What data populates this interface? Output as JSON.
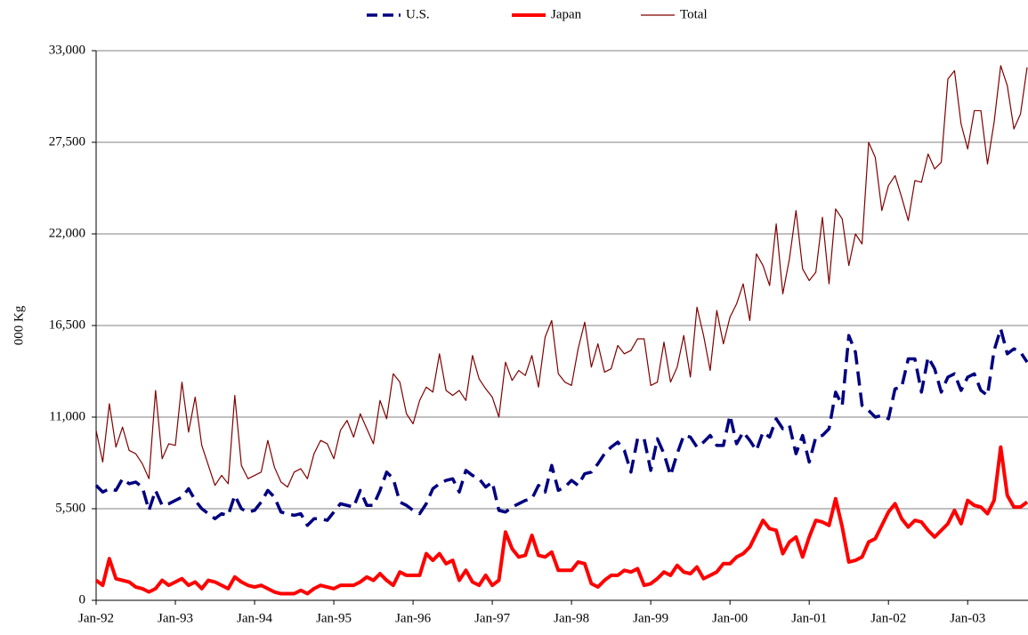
{
  "chart_data": {
    "type": "line",
    "y_label": "000 Kg",
    "categories": [
      "Jan-92",
      null,
      null,
      null,
      null,
      null,
      null,
      null,
      null,
      null,
      null,
      null,
      "Jan-93",
      null,
      null,
      null,
      null,
      null,
      null,
      null,
      null,
      null,
      null,
      null,
      "Jan-94",
      null,
      null,
      null,
      null,
      null,
      null,
      null,
      null,
      null,
      null,
      null,
      "Jan-95",
      null,
      null,
      null,
      null,
      null,
      null,
      null,
      null,
      null,
      null,
      null,
      "Jan-96",
      null,
      null,
      null,
      null,
      null,
      null,
      null,
      null,
      null,
      null,
      null,
      "Jan-97",
      null,
      null,
      null,
      null,
      null,
      null,
      null,
      null,
      null,
      null,
      null,
      "Jan-98",
      null,
      null,
      null,
      null,
      null,
      null,
      null,
      null,
      null,
      null,
      null,
      "Jan-99",
      null,
      null,
      null,
      null,
      null,
      null,
      null,
      null,
      null,
      null,
      null,
      "Jan-00",
      null,
      null,
      null,
      null,
      null,
      null,
      null,
      null,
      null,
      null,
      null,
      "Jan-01",
      null,
      null,
      null,
      null,
      null,
      null,
      null,
      null,
      null,
      null,
      null,
      "Jan-02",
      null,
      null,
      null,
      null,
      null,
      null,
      null,
      null,
      null,
      null,
      null,
      "Jan-03",
      null,
      null,
      null,
      null,
      null,
      null,
      null,
      null,
      null
    ],
    "series": [
      {
        "name": "U.S.",
        "color": "#000080",
        "dashed": true,
        "values": [
          6900,
          6500,
          6700,
          6600,
          7300,
          7000,
          7100,
          6800,
          5400,
          6600,
          5700,
          5800,
          6000,
          6200,
          6700,
          6000,
          5500,
          5200,
          4900,
          5200,
          5100,
          6300,
          5500,
          5300,
          5400,
          5900,
          6600,
          6200,
          5300,
          5200,
          5100,
          5200,
          4500,
          4900,
          4900,
          4800,
          5300,
          5800,
          5700,
          5600,
          6600,
          5700,
          5700,
          6600,
          7700,
          7300,
          5900,
          5700,
          5400,
          5200,
          5800,
          6700,
          7000,
          7200,
          7300,
          6500,
          7800,
          7500,
          7300,
          6800,
          7100,
          5400,
          5300,
          5600,
          5800,
          6000,
          6100,
          6900,
          6500,
          8100,
          6600,
          6800,
          7200,
          6900,
          7600,
          7700,
          8200,
          8800,
          9200,
          9500,
          9000,
          7700,
          9700,
          9700,
          7800,
          9700,
          8800,
          7500,
          8800,
          9900,
          9800,
          9200,
          9500,
          9900,
          9300,
          9300,
          11100,
          9400,
          10100,
          9600,
          9000,
          10100,
          9800,
          10900,
          10300,
          10500,
          8800,
          9900,
          8300,
          9800,
          9900,
          10300,
          12500,
          11700,
          15900,
          14900,
          11700,
          11400,
          11000,
          11100,
          10900,
          12700,
          12800,
          14500,
          14500,
          12500,
          14600,
          13900,
          12500,
          13400,
          13600,
          12600,
          13400,
          13600,
          12600,
          12300,
          15000,
          16300,
          14800,
          15100,
          14900,
          14300
        ]
      },
      {
        "name": "Japan",
        "color": "#ff0000",
        "width": 4,
        "values": [
          1200,
          900,
          2500,
          1300,
          1200,
          1100,
          800,
          700,
          500,
          700,
          1200,
          900,
          1100,
          1300,
          900,
          1100,
          700,
          1200,
          1100,
          900,
          700,
          1400,
          1100,
          900,
          800,
          900,
          700,
          500,
          400,
          400,
          400,
          600,
          400,
          700,
          900,
          800,
          700,
          900,
          900,
          900,
          1100,
          1400,
          1200,
          1600,
          1200,
          900,
          1700,
          1500,
          1500,
          1500,
          2800,
          2400,
          2800,
          2200,
          2400,
          1200,
          1800,
          1100,
          900,
          1500,
          900,
          1200,
          4100,
          3100,
          2600,
          2700,
          3900,
          2700,
          2600,
          2900,
          1800,
          1800,
          1800,
          2300,
          2200,
          1000,
          800,
          1200,
          1500,
          1500,
          1800,
          1700,
          1900,
          900,
          1000,
          1300,
          1700,
          1500,
          2100,
          1700,
          1600,
          2000,
          1300,
          1500,
          1700,
          2200,
          2200,
          2600,
          2800,
          3200,
          4000,
          4800,
          4300,
          4200,
          2800,
          3500,
          3800,
          2600,
          3800,
          4800,
          4700,
          4500,
          6100,
          4400,
          2300,
          2400,
          2600,
          3500,
          3700,
          4500,
          5300,
          5800,
          4900,
          4400,
          4800,
          4700,
          4200,
          3800,
          4200,
          4600,
          5400,
          4600,
          6000,
          5700,
          5600,
          5200,
          6000,
          9200,
          6300,
          5600,
          5600,
          5900
        ]
      },
      {
        "name": "Total",
        "color": "#800000",
        "width": 1.2,
        "values": [
          10200,
          8300,
          11800,
          9200,
          10400,
          9000,
          8800,
          8200,
          7300,
          12600,
          8500,
          9400,
          9300,
          13100,
          10100,
          12200,
          9300,
          8100,
          6900,
          7500,
          7000,
          12300,
          8100,
          7300,
          7500,
          7700,
          9600,
          8000,
          7100,
          6800,
          7700,
          7900,
          7300,
          8800,
          9600,
          9400,
          8500,
          10200,
          10800,
          9800,
          11200,
          10300,
          9400,
          12000,
          10900,
          13600,
          13100,
          11200,
          10600,
          12000,
          12800,
          12500,
          14800,
          12600,
          12300,
          12600,
          12000,
          14700,
          13300,
          12700,
          12200,
          11000,
          14300,
          13200,
          13800,
          13500,
          14700,
          12800,
          15800,
          16800,
          13600,
          13100,
          12900,
          15100,
          16700,
          14000,
          15400,
          13700,
          13900,
          15300,
          14800,
          15000,
          15700,
          15700,
          12900,
          13100,
          15500,
          13100,
          14000,
          15900,
          13400,
          17600,
          15900,
          13800,
          17400,
          15400,
          17000,
          17800,
          19000,
          16800,
          20800,
          20100,
          18900,
          22600,
          18400,
          20500,
          23400,
          19900,
          19200,
          19700,
          23000,
          19000,
          23500,
          22900,
          20100,
          22000,
          21400,
          27500,
          26600,
          23400,
          24900,
          25500,
          24200,
          22800,
          25200,
          25100,
          26800,
          25900,
          26300,
          31300,
          31800,
          28600,
          27100,
          29400,
          29400,
          26200,
          28700,
          32100,
          30900,
          28300,
          29200,
          32000
        ]
      }
    ],
    "ylim": [
      0,
      33000
    ],
    "yticks": [
      0,
      {
        "value": 5500,
        "label": "5,500"
      },
      {
        "value": 11000,
        "label": "11,000"
      },
      {
        "value": 16500,
        "label": "16,500"
      },
      {
        "value": 22000,
        "label": "22,000"
      },
      {
        "value": 27500,
        "label": "27,500"
      },
      {
        "value": 33000,
        "label": "33,000"
      }
    ],
    "grid": true,
    "legend": "top"
  }
}
